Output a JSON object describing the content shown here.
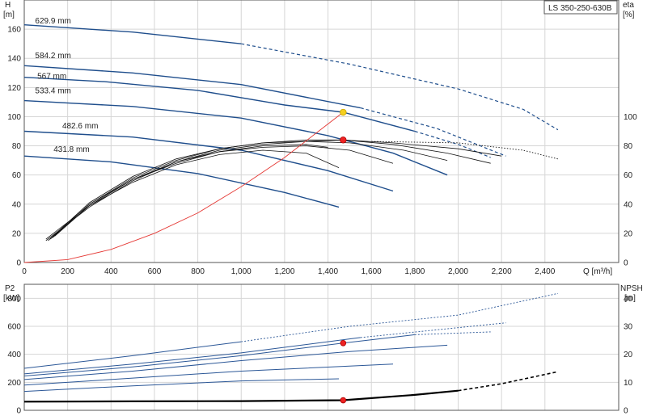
{
  "model_label": "LS 350-250-630B",
  "colors": {
    "head_curve": "#1f4e8c",
    "efficiency_curve": "#111111",
    "system_curve": "#e53935",
    "duty_point": "#ee2222",
    "duty_point_head": "#f5d020",
    "power_curve": "#2b5797",
    "npsh_curve": "#000000",
    "grid": "#d6d6d6",
    "axis": "#555555"
  },
  "chart_data": [
    {
      "type": "line",
      "panel": "head_efficiency",
      "xlabel": "Q [m³/h]",
      "ylabel_left": [
        "H",
        "[m]"
      ],
      "ylabel_right": [
        "eta",
        "[%]"
      ],
      "xlim": [
        0,
        2740
      ],
      "ylim": [
        0,
        180
      ],
      "y2lim": [
        0,
        180
      ],
      "x_ticks": [
        0,
        200,
        400,
        600,
        800,
        1000,
        1200,
        1400,
        1600,
        1800,
        2000,
        2200,
        2400
      ],
      "x_tick_labels": [
        "0",
        "200",
        "400",
        "600",
        "800",
        "1,000",
        "1,200",
        "1,400",
        "1,600",
        "1,800",
        "2,000",
        "2,200",
        "2,400"
      ],
      "y_ticks": [
        0,
        20,
        40,
        60,
        80,
        100,
        120,
        140,
        160
      ],
      "y_tick_labels": [
        "0",
        "20",
        "40",
        "60",
        "80",
        "100",
        "120",
        "140",
        "160"
      ],
      "y2_ticks": [
        0,
        20,
        40,
        60,
        80,
        100
      ],
      "y2_tick_labels": [
        "0",
        "20",
        "40",
        "60",
        "80",
        "100"
      ],
      "grid": true,
      "head_curves": [
        {
          "name": "629.9 mm",
          "label_at": [
            50,
            164
          ],
          "solid": [
            [
              0,
              163
            ],
            [
              500,
              158
            ],
            [
              1000,
              150
            ]
          ],
          "dashed": [
            [
              1000,
              150
            ],
            [
              1500,
              136
            ],
            [
              2000,
              119
            ],
            [
              2300,
              105
            ],
            [
              2460,
              91
            ]
          ]
        },
        {
          "name": "584.2 mm",
          "label_at": [
            50,
            140
          ],
          "solid": [
            [
              0,
              135
            ],
            [
              500,
              130
            ],
            [
              1000,
              122
            ],
            [
              1550,
              106
            ]
          ],
          "dashed": [
            [
              1550,
              106
            ],
            [
              1900,
              92
            ],
            [
              2220,
              73
            ]
          ]
        },
        {
          "name": "567 mm",
          "label_at": [
            60,
            126
          ],
          "solid": [
            [
              0,
              127
            ],
            [
              370,
              124
            ],
            [
              800,
              118
            ],
            [
              1200,
              108
            ],
            [
              1470,
              103
            ],
            [
              1800,
              90
            ]
          ],
          "dashed": [
            [
              1800,
              90
            ],
            [
              2000,
              81
            ],
            [
              2150,
              72
            ]
          ]
        },
        {
          "name": "533.4 mm",
          "label_at": [
            50,
            116
          ],
          "solid": [
            [
              0,
              111
            ],
            [
              500,
              107
            ],
            [
              1000,
              99
            ],
            [
              1400,
              87
            ],
            [
              1700,
              75
            ],
            [
              1950,
              60
            ]
          ],
          "dashed": []
        },
        {
          "name": "482.6 mm",
          "label_at": [
            175,
            92
          ],
          "solid": [
            [
              0,
              90
            ],
            [
              500,
              86
            ],
            [
              1000,
              77
            ],
            [
              1400,
              63
            ],
            [
              1700,
              49
            ]
          ],
          "dashed": []
        },
        {
          "name": "431.8 mm",
          "label_at": [
            135,
            76
          ],
          "solid": [
            [
              0,
              73
            ],
            [
              400,
              69
            ],
            [
              800,
              61
            ],
            [
              1200,
              48
            ],
            [
              1450,
              38
            ]
          ],
          "dashed": []
        }
      ],
      "efficiency_curves": [
        {
          "points": [
            [
              120,
              16
            ],
            [
              300,
              40
            ],
            [
              500,
              58
            ],
            [
              700,
              70
            ],
            [
              900,
              78
            ],
            [
              1100,
              82
            ],
            [
              1300,
              84
            ],
            [
              1470,
              84
            ],
            [
              1700,
              82
            ],
            [
              2000,
              78
            ],
            [
              2200,
              73
            ]
          ]
        },
        {
          "points": [
            [
              110,
              15
            ],
            [
              300,
              41
            ],
            [
              500,
              59
            ],
            [
              700,
              71
            ],
            [
              900,
              78
            ],
            [
              1100,
              82
            ],
            [
              1300,
              83
            ],
            [
              1470,
              84
            ],
            [
              1700,
              81
            ],
            [
              1950,
              75
            ],
            [
              2150,
              68
            ]
          ]
        },
        {
          "points": [
            [
              100,
              16
            ],
            [
              300,
              39
            ],
            [
              500,
              57
            ],
            [
              700,
              69
            ],
            [
              900,
              77
            ],
            [
              1100,
              81
            ],
            [
              1300,
              83
            ],
            [
              1500,
              82
            ],
            [
              1750,
              77
            ],
            [
              1950,
              70
            ]
          ]
        },
        {
          "points": [
            [
              130,
              17
            ],
            [
              300,
              40
            ],
            [
              500,
              57
            ],
            [
              700,
              68
            ],
            [
              900,
              76
            ],
            [
              1100,
              79
            ],
            [
              1300,
              80
            ],
            [
              1500,
              77
            ],
            [
              1700,
              68
            ]
          ]
        },
        {
          "points": [
            [
              140,
              18
            ],
            [
              300,
              39
            ],
            [
              500,
              55
            ],
            [
              700,
              67
            ],
            [
              900,
              74
            ],
            [
              1100,
              77
            ],
            [
              1300,
              75
            ],
            [
              1450,
              65
            ]
          ]
        },
        {
          "points": [
            [
              100,
              15
            ],
            [
              300,
              38
            ],
            [
              500,
              56
            ],
            [
              700,
              69
            ],
            [
              900,
              76
            ],
            [
              1100,
              80
            ],
            [
              1300,
              81
            ],
            [
              1400,
              79
            ]
          ]
        },
        {
          "dotted": true,
          "points": [
            [
              1600,
              83
            ],
            [
              2000,
              82
            ],
            [
              2300,
              77
            ],
            [
              2460,
              71
            ]
          ]
        }
      ],
      "system_curve": [
        [
          0,
          0
        ],
        [
          200,
          2
        ],
        [
          400,
          9
        ],
        [
          600,
          20
        ],
        [
          800,
          34
        ],
        [
          1000,
          52
        ],
        [
          1200,
          72
        ],
        [
          1400,
          95
        ],
        [
          1470,
          103
        ]
      ],
      "duty_points": [
        {
          "x": 1470,
          "y": 103,
          "kind": "head"
        },
        {
          "x": 1470,
          "y": 84,
          "kind": "efficiency"
        }
      ]
    },
    {
      "type": "line",
      "panel": "power_npsh",
      "xlabel": "",
      "ylabel_left": [
        "P2",
        "[kW]"
      ],
      "ylabel_right": [
        "NPSH",
        "[m]"
      ],
      "xlim": [
        0,
        2740
      ],
      "ylim": [
        0,
        900
      ],
      "y2lim": [
        0,
        45
      ],
      "x_ticks": [
        0,
        200,
        400,
        600,
        800,
        1000,
        1200,
        1400,
        1600,
        1800,
        2000,
        2200,
        2400
      ],
      "y_ticks": [
        0,
        200,
        400,
        600,
        800
      ],
      "y_tick_labels": [
        "0",
        "200",
        "400",
        "600",
        "800"
      ],
      "y2_ticks": [
        0,
        10,
        20,
        30,
        40
      ],
      "y2_tick_labels": [
        "0",
        "10",
        "20",
        "30",
        "40"
      ],
      "grid": true,
      "power_curves": [
        {
          "solid": [
            [
              0,
              300
            ],
            [
              500,
              390
            ],
            [
              1000,
              490
            ]
          ],
          "dashed": [
            [
              1000,
              490
            ],
            [
              1500,
              600
            ],
            [
              2000,
              680
            ],
            [
              2460,
              835
            ]
          ]
        },
        {
          "solid": [
            [
              0,
              260
            ],
            [
              500,
              330
            ],
            [
              1000,
              410
            ],
            [
              1550,
              520
            ]
          ],
          "dashed": [
            [
              1550,
              520
            ],
            [
              2220,
              625
            ]
          ]
        },
        {
          "solid": [
            [
              0,
              245
            ],
            [
              500,
              310
            ],
            [
              1000,
              390
            ],
            [
              1470,
              480
            ],
            [
              1800,
              540
            ]
          ],
          "dashed": [
            [
              1800,
              540
            ],
            [
              2150,
              560
            ]
          ]
        },
        {
          "solid": [
            [
              0,
              220
            ],
            [
              500,
              280
            ],
            [
              1000,
              355
            ],
            [
              1500,
              420
            ],
            [
              1950,
              465
            ]
          ],
          "dashed": []
        },
        {
          "solid": [
            [
              0,
              180
            ],
            [
              500,
              230
            ],
            [
              1000,
              280
            ],
            [
              1700,
              330
            ]
          ],
          "dashed": []
        },
        {
          "solid": [
            [
              0,
              135
            ],
            [
              500,
              175
            ],
            [
              1000,
              210
            ],
            [
              1450,
              225
            ]
          ],
          "dashed": []
        }
      ],
      "npsh_curve": {
        "solid": [
          [
            0,
            3.1
          ],
          [
            500,
            3.2
          ],
          [
            1000,
            3.3
          ],
          [
            1470,
            3.6
          ],
          [
            1800,
            5.5
          ],
          [
            2000,
            7.0
          ]
        ],
        "dashed": [
          [
            2000,
            7.0
          ],
          [
            2200,
            9.5
          ],
          [
            2460,
            13.8
          ]
        ]
      },
      "duty_points": [
        {
          "x": 1470,
          "y": 480,
          "kind": "power"
        },
        {
          "x": 1470,
          "y": 3.6,
          "kind": "npsh",
          "axis": "right"
        }
      ]
    }
  ]
}
